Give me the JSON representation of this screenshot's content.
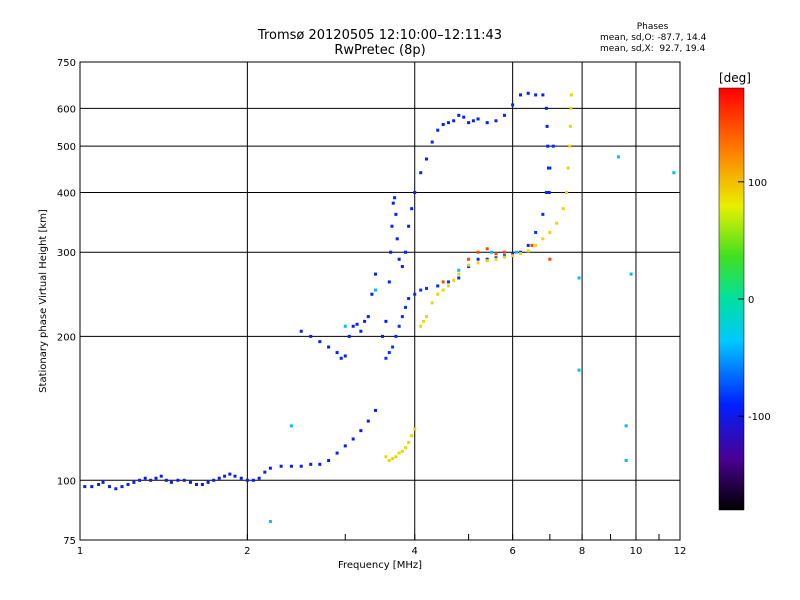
{
  "figure": {
    "title": "Tromsø 20120505 12:10:00–12:11:43",
    "subtitle": "RwPretec (8p)",
    "stats_title": "Phases",
    "stats_line1": "mean, sd,O: -87.7, 14.4",
    "stats_line2": "mean, sd,X:  92.7, 19.4"
  },
  "chart_data": {
    "type": "scatter",
    "title": "Tromsø 20120505 12:10:00–12:11:43",
    "subtitle": "RwPretec (8p)",
    "xlabel": "Frequency [MHz]",
    "ylabel": "Stationary phase Virtual Height [km]",
    "xscale": "log",
    "yscale": "log",
    "xlim": [
      1,
      12
    ],
    "ylim": [
      75,
      750
    ],
    "x_ticks": [
      1,
      2,
      4,
      6,
      8,
      10,
      12
    ],
    "x_tick_labels": [
      "1",
      "2",
      "4",
      "6",
      "8",
      "10",
      "12"
    ],
    "y_ticks": [
      75,
      100,
      200,
      300,
      400,
      500,
      600,
      750
    ],
    "y_tick_labels": [
      "75",
      "100",
      "200",
      "300",
      "400",
      "500",
      "600",
      "750"
    ],
    "grid": true,
    "colorbar": {
      "label": "[deg]",
      "range": [
        -180,
        180
      ],
      "ticks": [
        100,
        0,
        -100
      ],
      "tick_labels": [
        "100",
        "0",
        "-100"
      ],
      "colormap": "rainbow"
    },
    "series": [
      {
        "phase": -95,
        "points": [
          [
            1.02,
            97
          ],
          [
            1.05,
            97
          ],
          [
            1.08,
            98
          ],
          [
            1.1,
            99
          ],
          [
            1.13,
            97
          ],
          [
            1.16,
            96
          ],
          [
            1.19,
            97
          ],
          [
            1.22,
            98
          ],
          [
            1.25,
            99
          ],
          [
            1.28,
            100
          ],
          [
            1.31,
            101
          ],
          [
            1.34,
            100
          ],
          [
            1.37,
            101
          ],
          [
            1.4,
            102
          ],
          [
            1.43,
            100
          ],
          [
            1.46,
            99
          ],
          [
            1.5,
            100
          ],
          [
            1.54,
            100
          ],
          [
            1.58,
            99
          ],
          [
            1.62,
            98
          ],
          [
            1.66,
            98
          ],
          [
            1.7,
            99
          ],
          [
            1.74,
            100
          ],
          [
            1.78,
            101
          ],
          [
            1.82,
            102
          ],
          [
            1.86,
            103
          ],
          [
            1.9,
            102
          ],
          [
            1.95,
            101
          ],
          [
            2.0,
            100
          ],
          [
            2.05,
            100
          ],
          [
            2.1,
            101
          ],
          [
            2.15,
            104
          ],
          [
            2.2,
            106
          ],
          [
            2.3,
            107
          ],
          [
            2.4,
            107
          ],
          [
            2.5,
            107
          ],
          [
            2.6,
            108
          ],
          [
            2.7,
            108
          ],
          [
            2.8,
            110
          ],
          [
            2.9,
            114
          ],
          [
            3.0,
            118
          ],
          [
            3.1,
            122
          ],
          [
            3.2,
            127
          ],
          [
            3.3,
            133
          ],
          [
            3.4,
            140
          ]
        ]
      },
      {
        "phase": -90,
        "points": [
          [
            2.5,
            205
          ],
          [
            2.6,
            200
          ],
          [
            2.7,
            195
          ],
          [
            2.8,
            190
          ],
          [
            2.9,
            185
          ],
          [
            2.95,
            180
          ],
          [
            3.0,
            182
          ],
          [
            3.05,
            200
          ],
          [
            3.1,
            210
          ],
          [
            3.15,
            212
          ],
          [
            3.2,
            205
          ],
          [
            3.25,
            215
          ],
          [
            3.3,
            220
          ],
          [
            3.35,
            245
          ],
          [
            3.4,
            270
          ],
          [
            3.5,
            200
          ],
          [
            3.55,
            215
          ],
          [
            3.6,
            260
          ],
          [
            3.62,
            300
          ],
          [
            3.64,
            340
          ],
          [
            3.66,
            380
          ],
          [
            3.68,
            390
          ],
          [
            3.7,
            360
          ],
          [
            3.72,
            320
          ],
          [
            3.75,
            290
          ],
          [
            3.8,
            280
          ],
          [
            3.85,
            300
          ],
          [
            3.9,
            340
          ],
          [
            3.95,
            370
          ],
          [
            4.0,
            400
          ],
          [
            4.1,
            440
          ],
          [
            4.2,
            470
          ],
          [
            4.3,
            510
          ],
          [
            4.4,
            540
          ],
          [
            4.5,
            555
          ],
          [
            4.6,
            560
          ],
          [
            4.7,
            565
          ],
          [
            4.8,
            580
          ],
          [
            4.9,
            575
          ],
          [
            5.0,
            560
          ],
          [
            5.1,
            565
          ],
          [
            5.2,
            570
          ],
          [
            5.4,
            560
          ],
          [
            5.6,
            565
          ],
          [
            5.8,
            580
          ],
          [
            6.0,
            610
          ],
          [
            6.2,
            640
          ],
          [
            6.4,
            645
          ],
          [
            6.6,
            640
          ],
          [
            6.8,
            640
          ],
          [
            6.9,
            600
          ],
          [
            6.92,
            550
          ],
          [
            6.94,
            500
          ],
          [
            6.96,
            450
          ],
          [
            6.98,
            400
          ]
        ]
      },
      {
        "phase": -85,
        "points": [
          [
            3.55,
            180
          ],
          [
            3.6,
            185
          ],
          [
            3.65,
            190
          ],
          [
            3.7,
            200
          ],
          [
            3.75,
            210
          ],
          [
            3.8,
            220
          ],
          [
            3.85,
            230
          ],
          [
            3.9,
            240
          ],
          [
            4.0,
            245
          ],
          [
            4.1,
            250
          ],
          [
            4.2,
            252
          ],
          [
            4.4,
            255
          ],
          [
            4.6,
            260
          ],
          [
            4.8,
            265
          ],
          [
            5.0,
            280
          ],
          [
            5.2,
            290
          ],
          [
            5.4,
            290
          ],
          [
            5.6,
            292
          ],
          [
            5.8,
            295
          ],
          [
            6.0,
            298
          ],
          [
            6.2,
            300
          ],
          [
            6.4,
            310
          ],
          [
            6.6,
            330
          ],
          [
            6.8,
            360
          ],
          [
            6.9,
            400
          ],
          [
            7.0,
            450
          ],
          [
            7.1,
            500
          ]
        ]
      },
      {
        "phase": 90,
        "points": [
          [
            3.55,
            112
          ],
          [
            3.6,
            110
          ],
          [
            3.65,
            111
          ],
          [
            3.7,
            112
          ],
          [
            3.75,
            114
          ],
          [
            3.8,
            115
          ],
          [
            3.85,
            117
          ],
          [
            3.9,
            120
          ],
          [
            3.95,
            124
          ],
          [
            4.0,
            128
          ],
          [
            4.1,
            210
          ],
          [
            4.15,
            215
          ],
          [
            4.2,
            220
          ],
          [
            4.3,
            235
          ],
          [
            4.4,
            245
          ],
          [
            4.5,
            250
          ],
          [
            4.6,
            255
          ],
          [
            4.7,
            262
          ],
          [
            4.8,
            270
          ],
          [
            5.0,
            282
          ],
          [
            5.2,
            285
          ],
          [
            5.4,
            288
          ],
          [
            5.6,
            290
          ],
          [
            5.8,
            293
          ],
          [
            6.0,
            295
          ],
          [
            6.2,
            298
          ],
          [
            6.4,
            302
          ],
          [
            6.6,
            310
          ],
          [
            6.8,
            320
          ],
          [
            7.0,
            330
          ],
          [
            7.2,
            345
          ],
          [
            7.4,
            370
          ],
          [
            7.5,
            400
          ],
          [
            7.55,
            450
          ],
          [
            7.6,
            500
          ],
          [
            7.62,
            550
          ],
          [
            7.64,
            600
          ],
          [
            7.65,
            640
          ]
        ]
      },
      {
        "phase": 150,
        "points": [
          [
            5.0,
            290
          ],
          [
            5.2,
            300
          ],
          [
            5.4,
            305
          ],
          [
            5.6,
            298
          ],
          [
            5.8,
            300
          ],
          [
            6.5,
            310
          ],
          [
            7.0,
            290
          ],
          [
            4.5,
            260
          ]
        ]
      },
      {
        "phase": -40,
        "points": [
          [
            2.2,
            82
          ],
          [
            3.0,
            210
          ],
          [
            3.4,
            250
          ],
          [
            4.8,
            275
          ],
          [
            5.5,
            300
          ],
          [
            6.1,
            300
          ],
          [
            7.9,
            265
          ],
          [
            9.3,
            475
          ],
          [
            9.6,
            130
          ],
          [
            9.6,
            110
          ],
          [
            11.7,
            440
          ],
          [
            9.8,
            270
          ],
          [
            7.9,
            170
          ],
          [
            2.4,
            130
          ]
        ]
      }
    ]
  }
}
